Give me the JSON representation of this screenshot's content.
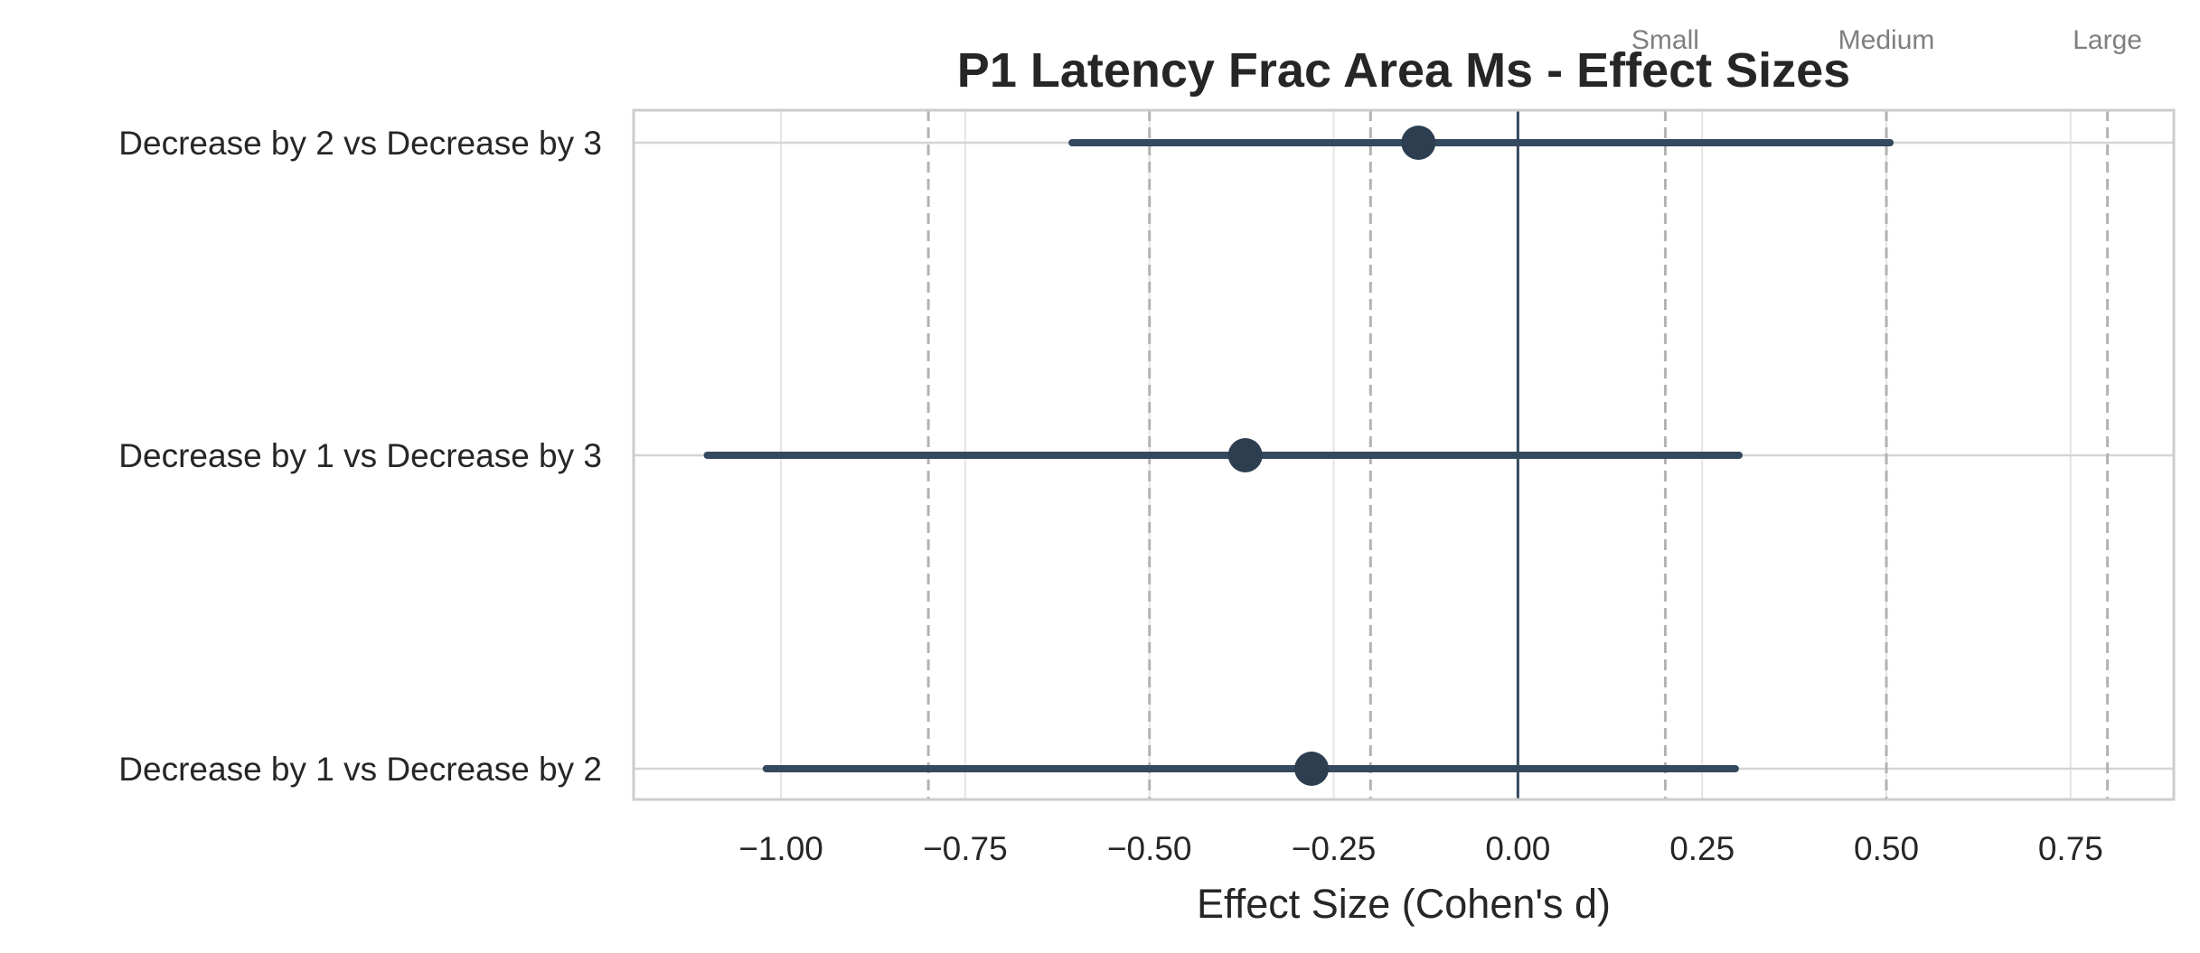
{
  "chart_data": {
    "type": "forest",
    "title": "P1 Latency Frac Area Ms - Effect Sizes",
    "xlabel": "Effect Size (Cohen's d)",
    "ylabel": "",
    "xlim": [
      -1.2,
      0.89
    ],
    "xticks": [
      -1.0,
      -0.75,
      -0.5,
      -0.25,
      0.0,
      0.25,
      0.5,
      0.75
    ],
    "xtick_labels": [
      "−1.00",
      "−0.75",
      "−0.50",
      "−0.25",
      "0.00",
      "0.25",
      "0.50",
      "0.75"
    ],
    "grid": true,
    "comparisons": [
      {
        "label": "Decrease by 2 vs Decrease by 3",
        "d": -0.135,
        "ci_low": -0.605,
        "ci_high": 0.505
      },
      {
        "label": "Decrease by 1 vs Decrease by 3",
        "d": -0.37,
        "ci_low": -1.1,
        "ci_high": 0.3
      },
      {
        "label": "Decrease by 1 vs Decrease by 2",
        "d": -0.28,
        "ci_low": -1.02,
        "ci_high": 0.295
      }
    ],
    "reference_lines": [
      -0.8,
      -0.5,
      -0.2,
      0.2,
      0.5,
      0.8
    ],
    "threshold_labels": [
      {
        "text": "Small",
        "value": 0.2
      },
      {
        "text": "Medium",
        "value": 0.5
      },
      {
        "text": "Large",
        "value": 0.8
      }
    ],
    "zero_line": 0.0,
    "colors": {
      "point": "#2c3e50",
      "ci": "#34495e",
      "zero_line": "#34495e",
      "reference": "#b3b3b3",
      "grid": "#e5e5e5",
      "axes": "#cccccc",
      "threshold_text": "#7f7f7f"
    }
  }
}
